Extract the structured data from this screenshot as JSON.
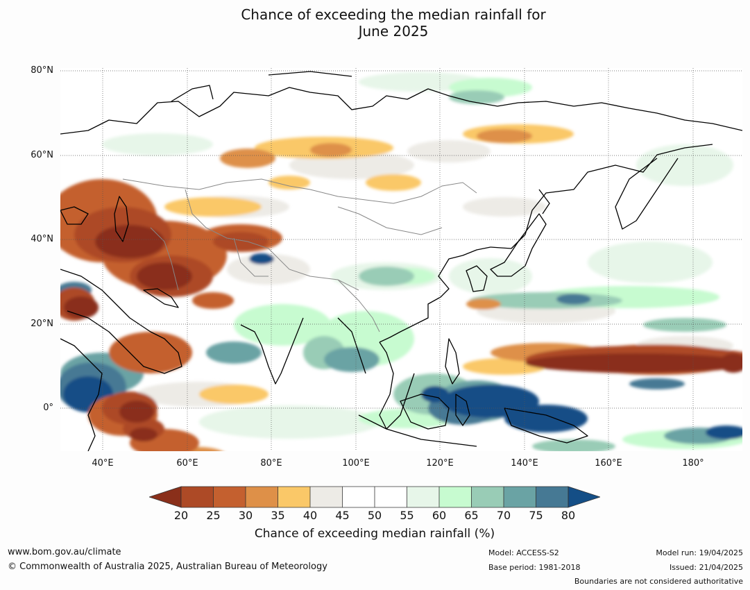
{
  "title": {
    "line1": "Chance of exceeding the median rainfall for",
    "line2": "June 2025"
  },
  "map": {
    "lat_labels": [
      "80°N",
      "60°N",
      "40°N",
      "20°N",
      "0°"
    ],
    "lon_labels": [
      "40°E",
      "60°E",
      "80°E",
      "100°E",
      "120°E",
      "140°E",
      "160°E",
      "180°"
    ]
  },
  "colorbar": {
    "ticks": [
      "20",
      "25",
      "30",
      "35",
      "40",
      "45",
      "50",
      "55",
      "60",
      "65",
      "70",
      "75",
      "80"
    ],
    "colors": {
      "below20": "#8a2f1a",
      "20_25": "#ad4a26",
      "25_30": "#c4602f",
      "30_35": "#de9048",
      "35_40": "#fac868",
      "40_45": "#edebe6",
      "45_50": "#ffffff",
      "50_55": "#ffffff",
      "55_60": "#e7f6e9",
      "60_65": "#c7fbd0",
      "65_70": "#99ccb6",
      "70_75": "#6aa3a4",
      "75_80": "#467994",
      "above80": "#144e86"
    },
    "label": "Chance of exceeding median rainfall (%)"
  },
  "footer": {
    "website": "www.bom.gov.au/climate",
    "copyright": "© Commonwealth of Australia 2025, Australian Bureau of Meteorology",
    "model": "Model: ACCESS-S2",
    "base_period": "Base period: 1981-2018",
    "model_run": "Model run: 19/04/2025",
    "issued": "Issued: 21/04/2025",
    "disclaimer": "Boundaries are not considered authoritative"
  }
}
